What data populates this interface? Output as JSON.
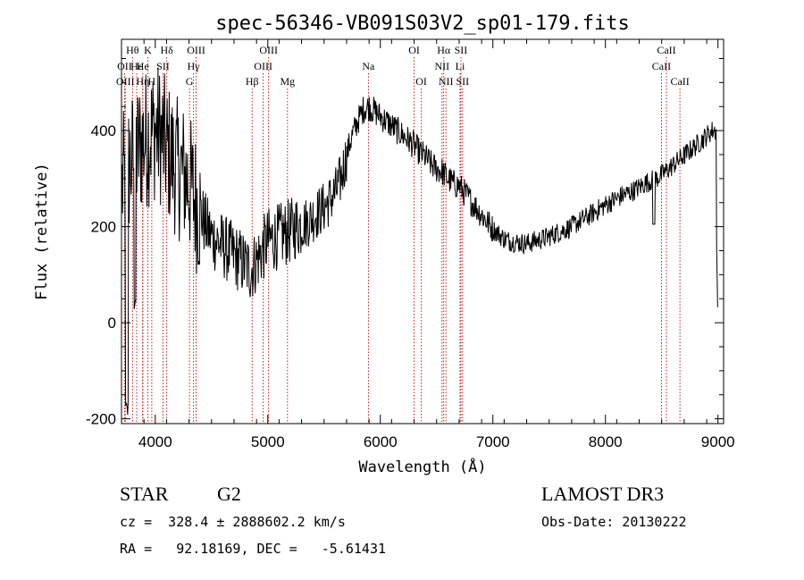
{
  "chart_data": {
    "type": "line",
    "title": "spec-56346-VB091S03V2_sp01-179.fits",
    "xlabel": "Wavelength (Å)",
    "ylabel": "Flux (relative)",
    "xlim": [
      3700,
      9050
    ],
    "ylim": [
      -210,
      590
    ],
    "xticks": [
      4000,
      5000,
      6000,
      7000,
      8000,
      9000
    ],
    "yticks": [
      -200,
      0,
      200,
      400
    ],
    "grid": false,
    "spectral_lines": [
      {
        "label": "OII",
        "wavelength": 3727,
        "row": 1
      },
      {
        "label": "OIII",
        "wavelength": 3734,
        "row": 2
      },
      {
        "label": "Hθ",
        "wavelength": 3798,
        "row": 0
      },
      {
        "label": "Hε",
        "wavelength": 3835,
        "row": 1
      },
      {
        "label": "Hη",
        "wavelength": 3889,
        "row": 2
      },
      {
        "label": "K",
        "wavelength": 3934,
        "row": 0
      },
      {
        "label": "He",
        "wavelength": 3889,
        "row": 1
      },
      {
        "label": "H",
        "wavelength": 3969,
        "row": 2
      },
      {
        "label": "SII",
        "wavelength": 4069,
        "row": 1
      },
      {
        "label": "Hδ",
        "wavelength": 4102,
        "row": 0
      },
      {
        "label": "G",
        "wavelength": 4304,
        "row": 2
      },
      {
        "label": "Hγ",
        "wavelength": 4340,
        "row": 1
      },
      {
        "label": "OIII",
        "wavelength": 4363,
        "row": 0
      },
      {
        "label": "Hβ",
        "wavelength": 4861,
        "row": 2
      },
      {
        "label": "OIII",
        "wavelength": 4959,
        "row": 1
      },
      {
        "label": "OIII",
        "wavelength": 5007,
        "row": 0
      },
      {
        "label": "Mg",
        "wavelength": 5175,
        "row": 2
      },
      {
        "label": "Na",
        "wavelength": 5894,
        "row": 1
      },
      {
        "label": "OI",
        "wavelength": 6300,
        "row": 0
      },
      {
        "label": "OI",
        "wavelength": 6364,
        "row": 2
      },
      {
        "label": "NII",
        "wavelength": 6548,
        "row": 1
      },
      {
        "label": "Hα",
        "wavelength": 6563,
        "row": 0
      },
      {
        "label": "NII",
        "wavelength": 6583,
        "row": 2
      },
      {
        "label": "Li",
        "wavelength": 6708,
        "row": 1
      },
      {
        "label": "SII",
        "wavelength": 6716,
        "row": 0
      },
      {
        "label": "SII",
        "wavelength": 6731,
        "row": 2
      },
      {
        "label": "CaII",
        "wavelength": 8498,
        "row": 1
      },
      {
        "label": "CaII",
        "wavelength": 8542,
        "row": 0
      },
      {
        "label": "CaII",
        "wavelength": 8662,
        "row": 2
      }
    ],
    "series": [
      {
        "name": "flux",
        "continuum_wavelengths": [
          3700,
          3760,
          3800,
          3850,
          3900,
          3950,
          4000,
          4050,
          4100,
          4150,
          4200,
          4250,
          4300,
          4350,
          4400,
          4450,
          4500,
          4550,
          4600,
          4650,
          4700,
          4750,
          4800,
          4850,
          4900,
          4950,
          5000,
          5050,
          5100,
          5150,
          5200,
          5250,
          5300,
          5350,
          5400,
          5450,
          5500,
          5550,
          5600,
          5650,
          5700,
          5750,
          5800,
          5850,
          5900,
          5950,
          6000,
          6050,
          6100,
          6150,
          6200,
          6250,
          6300,
          6350,
          6400,
          6450,
          6500,
          6550,
          6600,
          6650,
          6700,
          6750,
          6800,
          6850,
          6900,
          6950,
          7000,
          7050,
          7100,
          7150,
          7200,
          7250,
          7300,
          7350,
          7400,
          7450,
          7500,
          7550,
          7600,
          7650,
          7700,
          7750,
          7800,
          7850,
          7900,
          7950,
          8000,
          8050,
          8100,
          8150,
          8200,
          8250,
          8300,
          8350,
          8400,
          8450,
          8500,
          8550,
          8600,
          8650,
          8700,
          8750,
          8800,
          8850,
          8900,
          8950,
          9000
        ],
        "continuum_flux": [
          280,
          320,
          340,
          360,
          380,
          390,
          400,
          390,
          360,
          340,
          320,
          310,
          290,
          260,
          230,
          200,
          180,
          170,
          160,
          150,
          140,
          130,
          120,
          110,
          130,
          150,
          170,
          175,
          180,
          185,
          190,
          200,
          205,
          210,
          220,
          230,
          240,
          255,
          270,
          300,
          350,
          390,
          420,
          445,
          450,
          440,
          430,
          420,
          410,
          400,
          390,
          380,
          370,
          355,
          345,
          330,
          320,
          315,
          300,
          290,
          285,
          270,
          255,
          240,
          225,
          210,
          195,
          185,
          175,
          170,
          168,
          166,
          165,
          168,
          172,
          175,
          180,
          185,
          190,
          195,
          200,
          208,
          215,
          222,
          230,
          238,
          245,
          252,
          258,
          265,
          270,
          275,
          282,
          290,
          295,
          300,
          308,
          318,
          328,
          338,
          348,
          358,
          368,
          378,
          390,
          400,
          400
        ]
      }
    ]
  },
  "info": {
    "object_class": "STAR",
    "subclass": "G2",
    "survey": "LAMOST DR3",
    "redshift": "cz =  328.4 ± 2888602.2 km/s",
    "obs_date": "Obs-Date: 20130222",
    "coords": "RA =   92.18169, DEC =   -5.61431"
  }
}
